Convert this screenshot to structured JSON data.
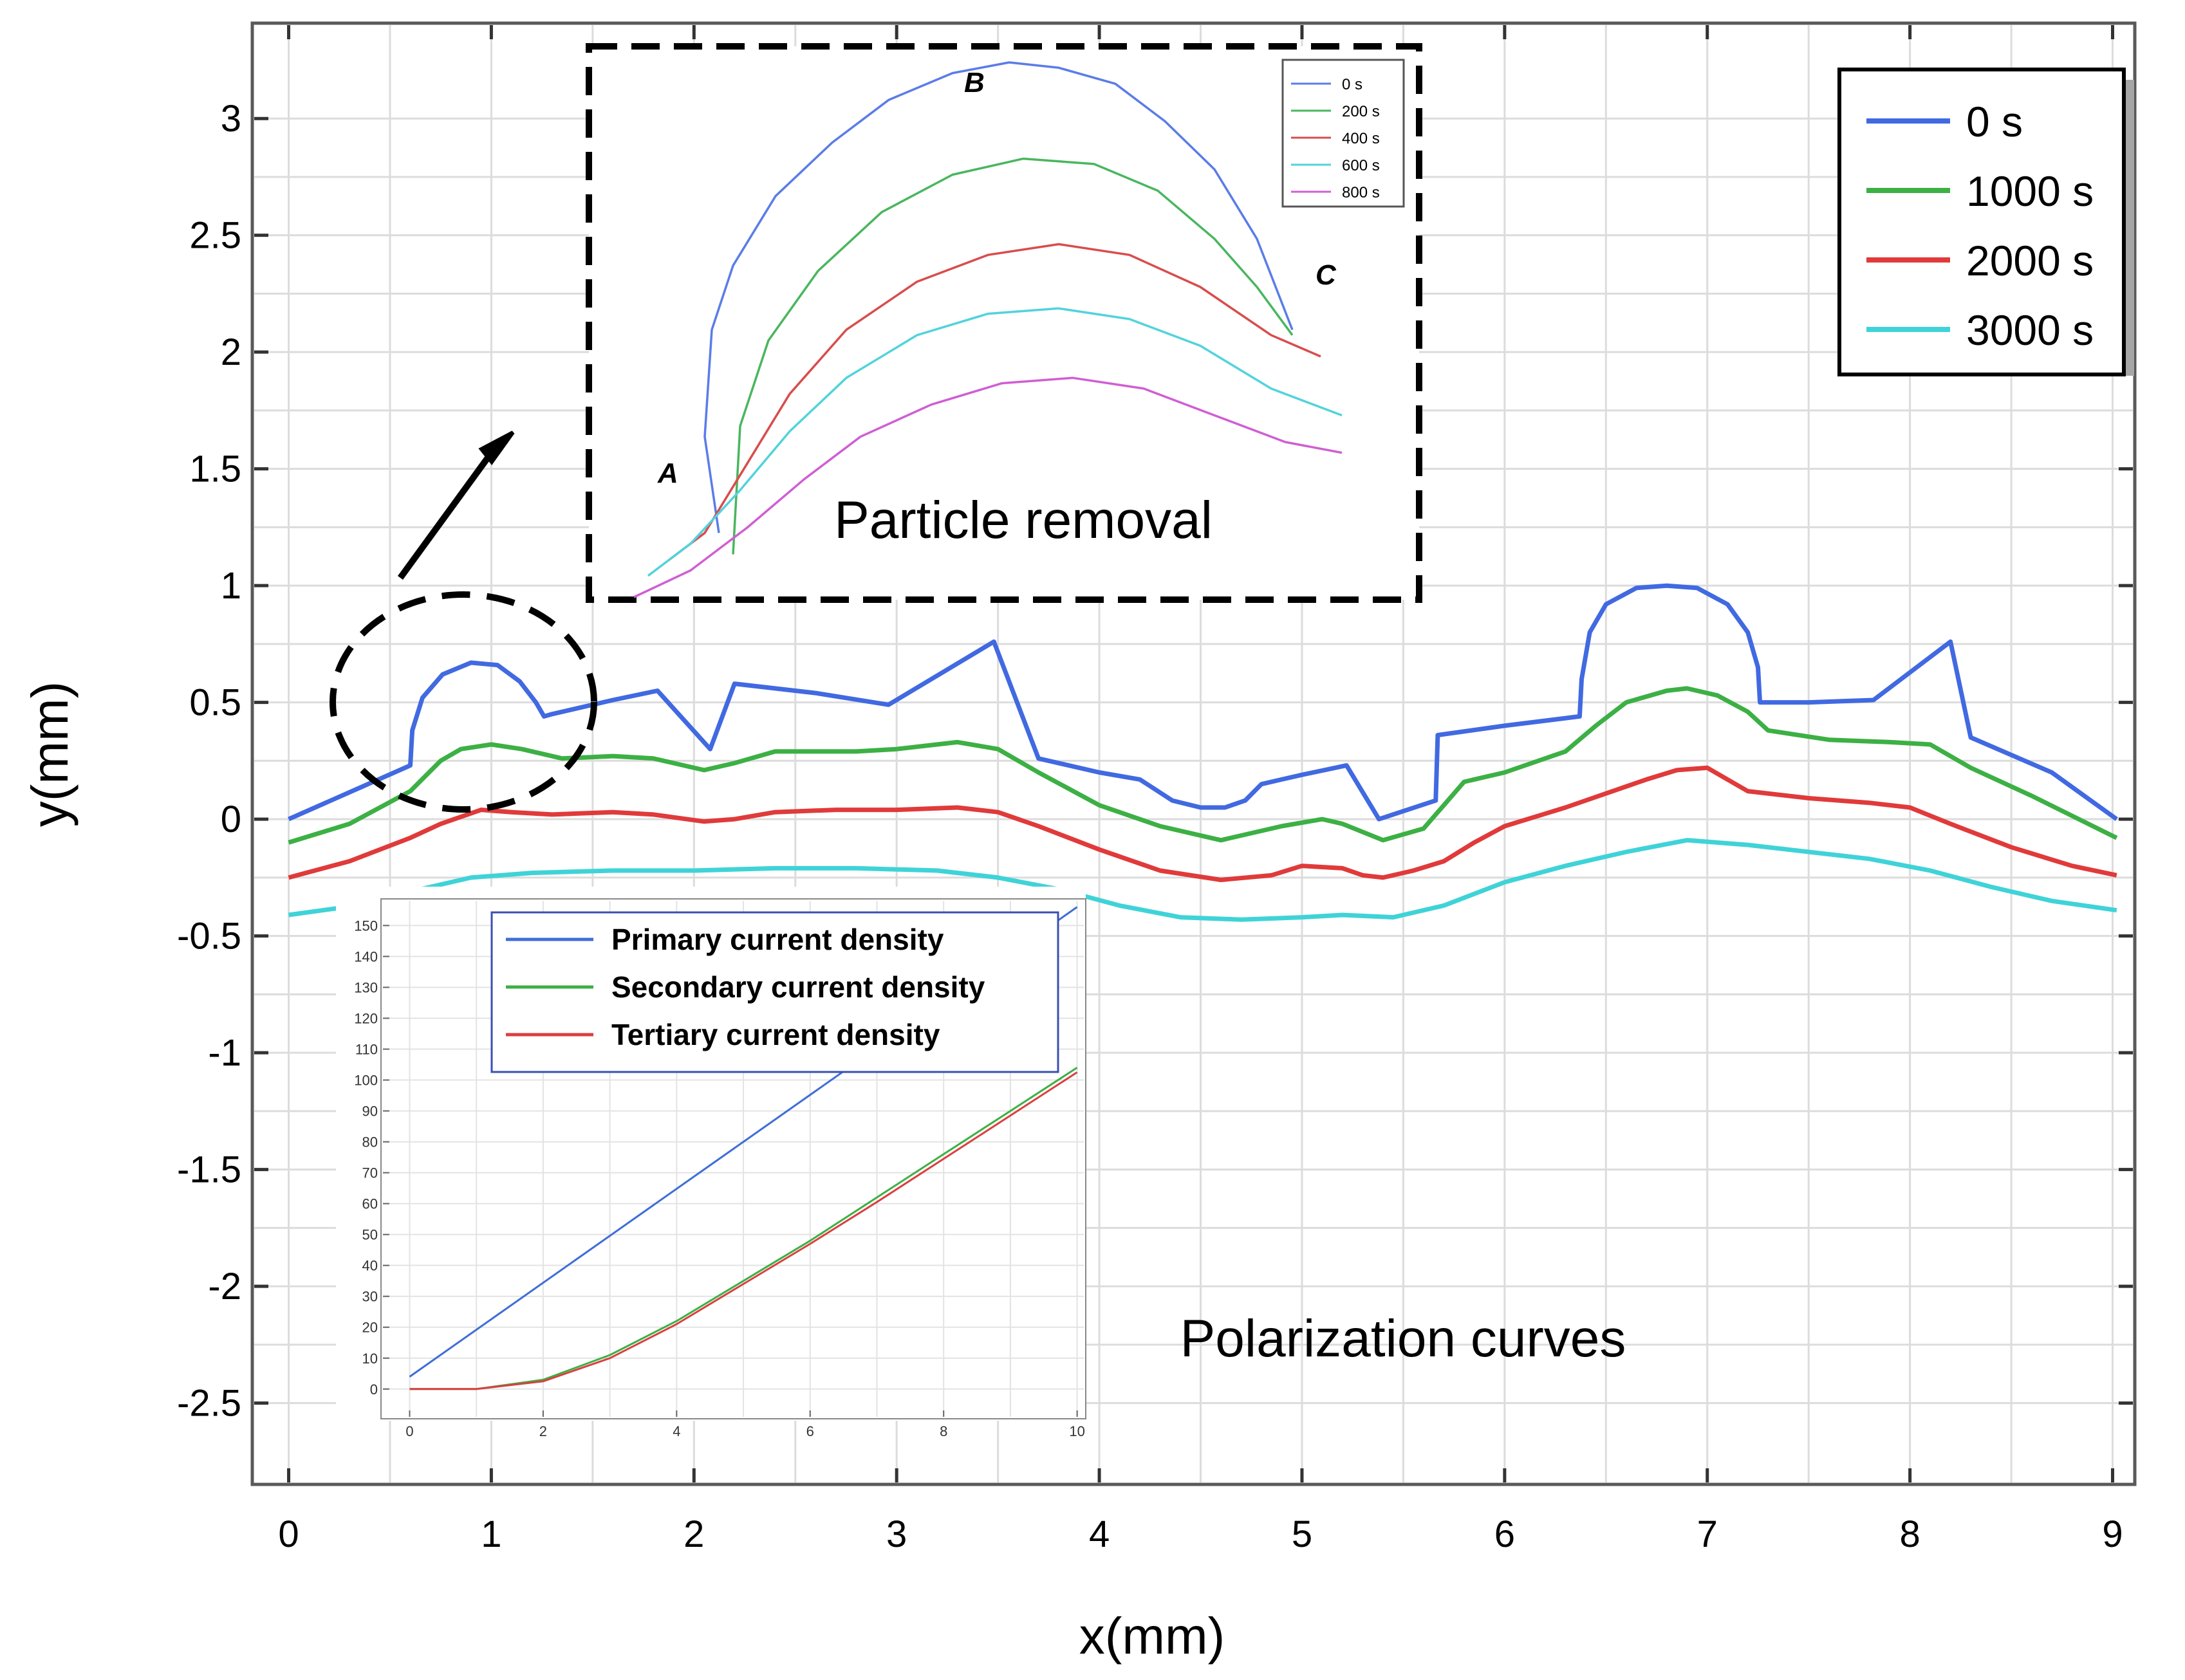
{
  "chart_data": [
    {
      "id": "main",
      "type": "line",
      "title": "",
      "xlabel": "x(mm)",
      "ylabel": "y(mm)",
      "xlim": [
        -0.17,
        9.1
      ],
      "ylim": [
        -2.84,
        3.4
      ],
      "grid": true,
      "xticks": [
        0,
        1,
        2,
        3,
        4,
        5,
        6,
        7,
        8,
        9
      ],
      "yticks": [
        3,
        2.5,
        2,
        1.5,
        1,
        0.5,
        0,
        -0.5,
        -1,
        -1.5,
        -2,
        -2.5
      ],
      "ytick_labels": [
        "3",
        "2.5",
        "2",
        "1.5",
        "1",
        "0.5",
        "0",
        "-0.5",
        "-1",
        "-1.5",
        "-2",
        "-2.5"
      ],
      "legend_position": "top-right",
      "annotation": "Polarization curves",
      "series": [
        {
          "name": "0 s",
          "color": "#4169e1",
          "x": [
            0,
            0.6,
            0.61,
            0.66,
            0.76,
            0.9,
            1.03,
            1.14,
            1.22,
            1.26,
            1.3,
            1.6,
            1.82,
            2.08,
            2.2,
            2.6,
            2.96,
            3.48,
            3.7,
            4.0,
            4.2,
            4.36,
            4.5,
            4.62,
            4.72,
            4.8,
            4.9,
            5.0,
            5.22,
            5.38,
            5.66,
            5.67,
            6.0,
            6.37,
            6.38,
            6.42,
            6.5,
            6.65,
            6.8,
            6.95,
            7.1,
            7.2,
            7.25,
            7.26,
            7.5,
            7.82,
            8.2,
            8.3,
            8.7,
            9.02
          ],
          "y": [
            0,
            0.23,
            0.38,
            0.52,
            0.62,
            0.67,
            0.66,
            0.59,
            0.5,
            0.44,
            0.45,
            0.51,
            0.55,
            0.3,
            0.58,
            0.54,
            0.49,
            0.76,
            0.26,
            0.2,
            0.17,
            0.08,
            0.05,
            0.05,
            0.08,
            0.15,
            0.17,
            0.19,
            0.23,
            0,
            0.08,
            0.36,
            0.4,
            0.44,
            0.6,
            0.8,
            0.92,
            0.99,
            1.0,
            0.99,
            0.92,
            0.8,
            0.65,
            0.5,
            0.5,
            0.51,
            0.76,
            0.35,
            0.2,
            0
          ]
        },
        {
          "name": "1000 s",
          "color": "#3cb044",
          "x": [
            0,
            0.3,
            0.6,
            0.75,
            0.85,
            1.0,
            1.15,
            1.35,
            1.6,
            1.8,
            2.05,
            2.2,
            2.4,
            2.8,
            3.0,
            3.3,
            3.5,
            3.7,
            4.0,
            4.3,
            4.6,
            4.9,
            5.1,
            5.2,
            5.4,
            5.6,
            5.7,
            5.8,
            6.0,
            6.3,
            6.45,
            6.6,
            6.8,
            6.9,
            7.05,
            7.2,
            7.3,
            7.6,
            7.9,
            8.1,
            8.3,
            8.6,
            9.02
          ],
          "y": [
            -0.1,
            -0.02,
            0.12,
            0.25,
            0.3,
            0.32,
            0.3,
            0.26,
            0.27,
            0.26,
            0.21,
            0.24,
            0.29,
            0.29,
            0.3,
            0.33,
            0.3,
            0.2,
            0.06,
            -0.03,
            -0.09,
            -0.03,
            0,
            -0.02,
            -0.09,
            -0.04,
            0.06,
            0.16,
            0.2,
            0.29,
            0.4,
            0.5,
            0.55,
            0.56,
            0.53,
            0.46,
            0.38,
            0.34,
            0.33,
            0.32,
            0.22,
            0.1,
            -0.08
          ]
        },
        {
          "name": "2000 s",
          "color": "#e03a3a",
          "x": [
            0,
            0.3,
            0.6,
            0.75,
            0.95,
            1.1,
            1.3,
            1.6,
            1.8,
            2.05,
            2.2,
            2.4,
            2.7,
            3.0,
            3.3,
            3.5,
            3.7,
            4.0,
            4.3,
            4.6,
            4.85,
            5.0,
            5.2,
            5.3,
            5.4,
            5.55,
            5.7,
            5.85,
            6.0,
            6.3,
            6.5,
            6.7,
            6.85,
            7.0,
            7.2,
            7.5,
            7.8,
            8.0,
            8.2,
            8.5,
            8.8,
            9.02
          ],
          "y": [
            -0.25,
            -0.18,
            -0.08,
            -0.02,
            0.04,
            0.03,
            0.02,
            0.03,
            0.02,
            -0.01,
            0,
            0.03,
            0.04,
            0.04,
            0.05,
            0.03,
            -0.03,
            -0.13,
            -0.22,
            -0.26,
            -0.24,
            -0.2,
            -0.21,
            -0.24,
            -0.25,
            -0.22,
            -0.18,
            -0.1,
            -0.03,
            0.05,
            0.11,
            0.17,
            0.21,
            0.22,
            0.12,
            0.09,
            0.07,
            0.05,
            -0.02,
            -0.12,
            -0.2,
            -0.24
          ]
        },
        {
          "name": "3000 s",
          "color": "#3fd3d8",
          "x": [
            0,
            0.25,
            0.55,
            0.9,
            1.2,
            1.6,
            2.0,
            2.4,
            2.8,
            3.2,
            3.5,
            3.8,
            4.1,
            4.4,
            4.7,
            5.0,
            5.2,
            5.45,
            5.7,
            6.0,
            6.3,
            6.6,
            6.9,
            7.2,
            7.5,
            7.8,
            8.1,
            8.4,
            8.7,
            9.02
          ],
          "y": [
            -0.41,
            -0.38,
            -0.32,
            -0.25,
            -0.23,
            -0.22,
            -0.22,
            -0.21,
            -0.21,
            -0.22,
            -0.25,
            -0.3,
            -0.37,
            -0.42,
            -0.43,
            -0.42,
            -0.41,
            -0.42,
            -0.37,
            -0.27,
            -0.2,
            -0.14,
            -0.09,
            -0.11,
            -0.14,
            -0.17,
            -0.22,
            -0.29,
            -0.35,
            -0.39
          ]
        }
      ]
    },
    {
      "id": "particle_removal",
      "type": "line",
      "title": "Particle removal",
      "xlabel": "",
      "ylabel": "",
      "point_labels": [
        "A",
        "B",
        "C"
      ],
      "legend_position": "top-right",
      "series": [
        {
          "name": "0 s",
          "color": "#5b7ce8",
          "x": [
            0.12,
            0.1,
            0.11,
            0.14,
            0.2,
            0.28,
            0.36,
            0.45,
            0.53,
            0.6,
            0.68,
            0.75,
            0.82,
            0.88,
            0.93
          ],
          "y": [
            0.12,
            0.3,
            0.5,
            0.62,
            0.75,
            0.85,
            0.93,
            0.98,
            1.0,
            0.99,
            0.96,
            0.89,
            0.8,
            0.67,
            0.5
          ]
        },
        {
          "name": "200 s",
          "color": "#49b65e",
          "x": [
            0.14,
            0.15,
            0.19,
            0.26,
            0.35,
            0.45,
            0.55,
            0.65,
            0.74,
            0.82,
            0.88,
            0.93
          ],
          "y": [
            0.08,
            0.32,
            0.48,
            0.61,
            0.72,
            0.79,
            0.82,
            0.81,
            0.76,
            0.67,
            0.58,
            0.49
          ]
        },
        {
          "name": "400 s",
          "color": "#d94c4c",
          "x": [
            0.05,
            0.1,
            0.16,
            0.22,
            0.3,
            0.4,
            0.5,
            0.6,
            0.7,
            0.8,
            0.9,
            0.97
          ],
          "y": [
            0.07,
            0.12,
            0.25,
            0.38,
            0.5,
            0.59,
            0.64,
            0.66,
            0.64,
            0.58,
            0.49,
            0.45
          ]
        },
        {
          "name": "600 s",
          "color": "#52d3dc",
          "x": [
            0.02,
            0.08,
            0.15,
            0.22,
            0.3,
            0.4,
            0.5,
            0.6,
            0.7,
            0.8,
            0.9,
            1.0
          ],
          "y": [
            0.04,
            0.1,
            0.2,
            0.31,
            0.41,
            0.49,
            0.53,
            0.54,
            0.52,
            0.47,
            0.39,
            0.34
          ]
        },
        {
          "name": "800 s",
          "color": "#cf5fd3",
          "x": [
            0.0,
            0.08,
            0.16,
            0.24,
            0.32,
            0.42,
            0.52,
            0.62,
            0.72,
            0.82,
            0.92,
            1.0
          ],
          "y": [
            0.0,
            0.05,
            0.13,
            0.22,
            0.3,
            0.36,
            0.4,
            0.41,
            0.39,
            0.34,
            0.29,
            0.27
          ]
        }
      ]
    },
    {
      "id": "polarization",
      "type": "line",
      "title": "",
      "xlabel": "",
      "ylabel": "",
      "xlim": [
        -0.4,
        10.1
      ],
      "ylim": [
        -9,
        158
      ],
      "xticks": [
        0,
        2,
        4,
        6,
        8,
        10
      ],
      "yticks": [
        0,
        10,
        20,
        30,
        40,
        50,
        60,
        70,
        80,
        90,
        100,
        110,
        120,
        130,
        140,
        150
      ],
      "legend_position": "top",
      "series": [
        {
          "name": "Primary current density",
          "color": "#3f6ed6",
          "x": [
            0,
            10
          ],
          "y": [
            4,
            156
          ]
        },
        {
          "name": "Secondary current density",
          "color": "#3cb044",
          "x": [
            0,
            1,
            2,
            3,
            4,
            5,
            6,
            7,
            8,
            9,
            10
          ],
          "y": [
            0,
            0,
            3,
            11,
            22,
            35,
            48,
            62,
            76,
            90,
            104
          ]
        },
        {
          "name": "Tertiary current density",
          "color": "#d94040",
          "x": [
            0,
            1,
            2,
            3,
            4,
            5,
            6,
            7,
            8,
            9,
            10
          ],
          "y": [
            0,
            0,
            2.5,
            10,
            21,
            34,
            47,
            60.5,
            74.5,
            88.5,
            102.5
          ]
        }
      ]
    }
  ]
}
